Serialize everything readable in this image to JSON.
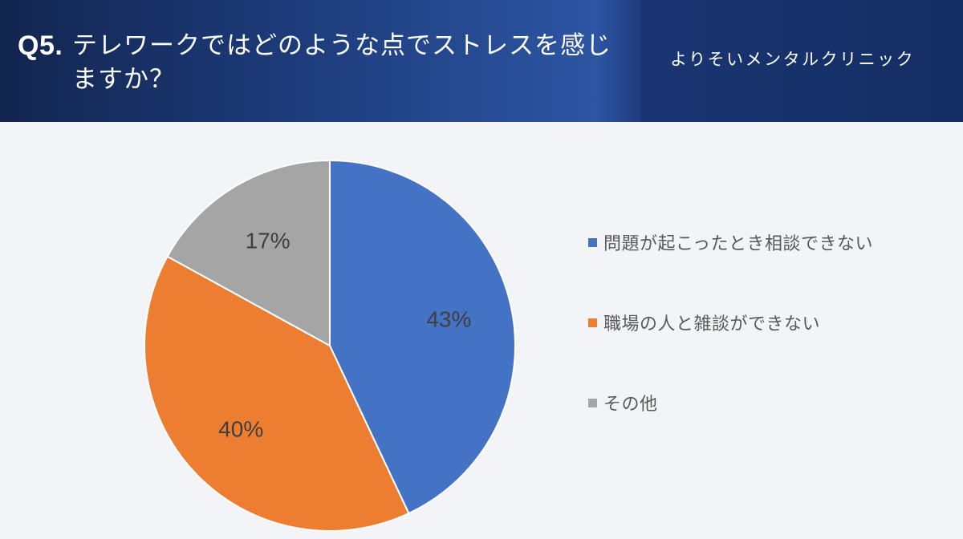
{
  "header": {
    "question_number": "Q5.",
    "question_text": "テレワークではどのような点でストレスを感じますか？",
    "clinic_name": "よりそいメンタルクリニック"
  },
  "colors": {
    "series": [
      "#4472c4",
      "#ed7d31",
      "#a5a5a5"
    ],
    "header_bg": "#1d3b7a"
  },
  "chart_data": {
    "type": "pie",
    "title": "テレワークではどのような点でストレスを感じますか？",
    "categories": [
      "問題が起こったとき相談できない",
      "職場の人と雑談ができない",
      "その他"
    ],
    "values": [
      43,
      40,
      17
    ],
    "value_labels": [
      "43%",
      "40%",
      "17%"
    ],
    "start_angle": "12 o'clock",
    "direction": "clockwise",
    "legend_position": "right"
  }
}
